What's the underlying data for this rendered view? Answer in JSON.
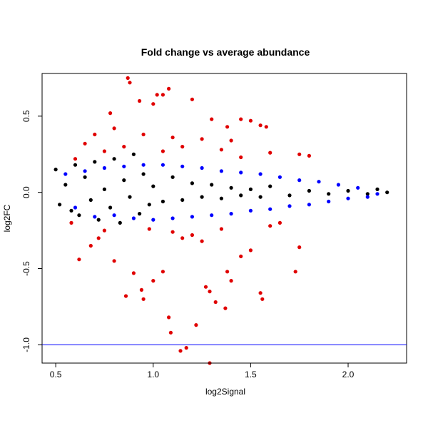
{
  "chart_data": {
    "type": "scatter",
    "title": "Fold change vs average abundance",
    "xlabel": "log2Signal",
    "ylabel": "log2FC",
    "xlim": [
      0.43,
      2.3
    ],
    "ylim": [
      -1.12,
      0.78
    ],
    "xticks": [
      0.5,
      1.0,
      1.5,
      2.0
    ],
    "xtick_labels": [
      "0.5",
      "1.0",
      "1.5",
      "2.0"
    ],
    "yticks": [
      -1.0,
      -0.5,
      0.0,
      0.5
    ],
    "ytick_labels": [
      "-1.0",
      "-0.5",
      "0.0",
      "0.5"
    ],
    "grid": false,
    "hline": {
      "y": -1.0,
      "color": "#0000ff"
    },
    "series": [
      {
        "color": "#000000",
        "points": [
          [
            0.5,
            0.15
          ],
          [
            0.52,
            -0.08
          ],
          [
            0.55,
            0.05
          ],
          [
            0.58,
            -0.12
          ],
          [
            0.6,
            0.18
          ],
          [
            0.62,
            -0.15
          ],
          [
            0.65,
            0.1
          ],
          [
            0.68,
            -0.05
          ],
          [
            0.7,
            0.2
          ],
          [
            0.72,
            -0.18
          ],
          [
            0.75,
            0.02
          ],
          [
            0.78,
            -0.1
          ],
          [
            0.8,
            0.22
          ],
          [
            0.83,
            -0.2
          ],
          [
            0.85,
            0.08
          ],
          [
            0.88,
            -0.03
          ],
          [
            0.9,
            0.25
          ],
          [
            0.93,
            -0.14
          ],
          [
            0.95,
            0.12
          ],
          [
            0.98,
            -0.08
          ],
          [
            1.0,
            0.04
          ],
          [
            1.05,
            -0.06
          ],
          [
            1.1,
            0.1
          ],
          [
            1.15,
            -0.05
          ],
          [
            1.2,
            0.06
          ],
          [
            1.25,
            -0.03
          ],
          [
            1.3,
            0.05
          ],
          [
            1.35,
            -0.04
          ],
          [
            1.4,
            0.03
          ],
          [
            1.45,
            -0.02
          ],
          [
            1.5,
            0.02
          ],
          [
            1.55,
            -0.03
          ],
          [
            1.6,
            0.04
          ],
          [
            1.7,
            -0.02
          ],
          [
            1.8,
            0.01
          ],
          [
            1.9,
            -0.01
          ],
          [
            2.0,
            0.01
          ],
          [
            2.1,
            -0.01
          ],
          [
            2.15,
            0.02
          ],
          [
            2.2,
            0.0
          ]
        ]
      },
      {
        "color": "#0000ff",
        "points": [
          [
            0.55,
            0.12
          ],
          [
            0.6,
            -0.1
          ],
          [
            0.65,
            0.14
          ],
          [
            0.7,
            -0.16
          ],
          [
            0.75,
            0.16
          ],
          [
            0.8,
            -0.15
          ],
          [
            0.85,
            0.17
          ],
          [
            0.9,
            -0.17
          ],
          [
            0.95,
            0.18
          ],
          [
            1.0,
            -0.18
          ],
          [
            1.05,
            0.18
          ],
          [
            1.1,
            -0.17
          ],
          [
            1.15,
            0.17
          ],
          [
            1.2,
            -0.16
          ],
          [
            1.25,
            0.16
          ],
          [
            1.3,
            -0.15
          ],
          [
            1.35,
            0.14
          ],
          [
            1.4,
            -0.14
          ],
          [
            1.45,
            0.13
          ],
          [
            1.5,
            -0.12
          ],
          [
            1.55,
            0.12
          ],
          [
            1.6,
            -0.11
          ],
          [
            1.65,
            0.1
          ],
          [
            1.7,
            -0.09
          ],
          [
            1.75,
            0.08
          ],
          [
            1.8,
            -0.08
          ],
          [
            1.85,
            0.07
          ],
          [
            1.9,
            -0.06
          ],
          [
            1.95,
            0.05
          ],
          [
            2.0,
            -0.04
          ],
          [
            2.05,
            0.03
          ],
          [
            2.1,
            -0.03
          ],
          [
            2.15,
            -0.01
          ]
        ]
      },
      {
        "color": "#e00000",
        "points": [
          [
            0.87,
            0.75
          ],
          [
            0.88,
            0.72
          ],
          [
            1.08,
            0.68
          ],
          [
            1.02,
            0.64
          ],
          [
            1.05,
            0.64
          ],
          [
            1.2,
            0.61
          ],
          [
            0.93,
            0.6
          ],
          [
            1.0,
            0.58
          ],
          [
            0.78,
            0.52
          ],
          [
            1.3,
            0.48
          ],
          [
            1.45,
            0.48
          ],
          [
            1.5,
            0.47
          ],
          [
            1.38,
            0.43
          ],
          [
            1.55,
            0.44
          ],
          [
            0.8,
            0.42
          ],
          [
            1.58,
            0.43
          ],
          [
            0.7,
            0.38
          ],
          [
            0.95,
            0.38
          ],
          [
            1.1,
            0.36
          ],
          [
            1.25,
            0.35
          ],
          [
            1.4,
            0.34
          ],
          [
            0.65,
            0.32
          ],
          [
            0.85,
            0.3
          ],
          [
            1.15,
            0.3
          ],
          [
            1.35,
            0.28
          ],
          [
            0.75,
            0.27
          ],
          [
            1.05,
            0.27
          ],
          [
            1.6,
            0.26
          ],
          [
            1.75,
            0.25
          ],
          [
            1.8,
            0.24
          ],
          [
            0.6,
            0.22
          ],
          [
            1.45,
            0.23
          ],
          [
            0.62,
            -0.44
          ],
          [
            0.68,
            -0.35
          ],
          [
            0.72,
            -0.3
          ],
          [
            0.8,
            -0.45
          ],
          [
            0.86,
            -0.68
          ],
          [
            0.9,
            -0.53
          ],
          [
            0.94,
            -0.64
          ],
          [
            0.95,
            -0.7
          ],
          [
            1.0,
            -0.58
          ],
          [
            1.05,
            -0.52
          ],
          [
            1.08,
            -0.82
          ],
          [
            1.09,
            -0.92
          ],
          [
            1.14,
            -1.04
          ],
          [
            1.17,
            -1.02
          ],
          [
            1.22,
            -0.87
          ],
          [
            1.27,
            -0.62
          ],
          [
            1.29,
            -0.65
          ],
          [
            1.29,
            -1.12
          ],
          [
            1.32,
            -0.72
          ],
          [
            1.37,
            -0.76
          ],
          [
            1.38,
            -0.52
          ],
          [
            1.4,
            -0.58
          ],
          [
            1.45,
            -0.42
          ],
          [
            1.5,
            -0.38
          ],
          [
            1.55,
            -0.66
          ],
          [
            1.56,
            -0.7
          ],
          [
            1.73,
            -0.52
          ],
          [
            1.75,
            -0.36
          ],
          [
            1.15,
            -0.3
          ],
          [
            1.2,
            -0.28
          ],
          [
            1.25,
            -0.32
          ],
          [
            0.75,
            -0.25
          ],
          [
            0.98,
            -0.24
          ],
          [
            1.1,
            -0.26
          ],
          [
            1.35,
            -0.24
          ],
          [
            1.6,
            -0.22
          ],
          [
            1.65,
            -0.2
          ],
          [
            0.58,
            -0.2
          ]
        ]
      }
    ]
  }
}
